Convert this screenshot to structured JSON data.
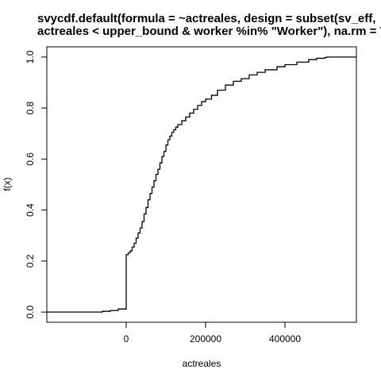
{
  "chart_data": {
    "type": "line",
    "title_lines": [
      "svycdf.default(formula = ~actreales, design = subset(sv_eff,",
      "actreales < upper_bound & worker %in% \"Worker\"), na.rm = T)"
    ],
    "xlabel": "actreales",
    "ylabel": "f(x)",
    "xlim": [
      -200000,
      580000
    ],
    "ylim": [
      -0.04,
      1.04
    ],
    "x_ticks": [
      0,
      200000,
      400000
    ],
    "x_tick_labels": [
      "0",
      "200000",
      "400000"
    ],
    "y_ticks": [
      0.0,
      0.2,
      0.4,
      0.6,
      0.8,
      1.0
    ],
    "y_tick_labels": [
      "0.0",
      "0.2",
      "0.4",
      "0.6",
      "0.8",
      "1.0"
    ],
    "grid": false,
    "series": [
      {
        "color": "#000000",
        "points": [
          [
            -200000,
            0.0
          ],
          [
            -70000,
            0.0
          ],
          [
            -60000,
            0.003
          ],
          [
            -40000,
            0.006
          ],
          [
            -20000,
            0.012
          ],
          [
            0,
            0.02
          ],
          [
            0,
            0.225
          ],
          [
            5000,
            0.232
          ],
          [
            10000,
            0.24
          ],
          [
            15000,
            0.255
          ],
          [
            20000,
            0.27
          ],
          [
            25000,
            0.29
          ],
          [
            30000,
            0.31
          ],
          [
            35000,
            0.33
          ],
          [
            40000,
            0.355
          ],
          [
            45000,
            0.385
          ],
          [
            50000,
            0.41
          ],
          [
            55000,
            0.44
          ],
          [
            60000,
            0.465
          ],
          [
            65000,
            0.49
          ],
          [
            70000,
            0.515
          ],
          [
            75000,
            0.54
          ],
          [
            80000,
            0.56
          ],
          [
            85000,
            0.585
          ],
          [
            90000,
            0.61
          ],
          [
            95000,
            0.63
          ],
          [
            100000,
            0.655
          ],
          [
            105000,
            0.675
          ],
          [
            110000,
            0.69
          ],
          [
            115000,
            0.705
          ],
          [
            120000,
            0.715
          ],
          [
            125000,
            0.725
          ],
          [
            130000,
            0.735
          ],
          [
            140000,
            0.75
          ],
          [
            150000,
            0.765
          ],
          [
            160000,
            0.78
          ],
          [
            170000,
            0.795
          ],
          [
            180000,
            0.81
          ],
          [
            190000,
            0.825
          ],
          [
            200000,
            0.835
          ],
          [
            215000,
            0.85
          ],
          [
            230000,
            0.87
          ],
          [
            250000,
            0.89
          ],
          [
            270000,
            0.905
          ],
          [
            290000,
            0.915
          ],
          [
            310000,
            0.93
          ],
          [
            330000,
            0.94
          ],
          [
            350000,
            0.95
          ],
          [
            380000,
            0.962
          ],
          [
            400000,
            0.97
          ],
          [
            430000,
            0.98
          ],
          [
            460000,
            0.99
          ],
          [
            480000,
            0.995
          ],
          [
            500000,
            0.998
          ],
          [
            505000,
            1.0
          ],
          [
            580000,
            1.0
          ]
        ]
      }
    ]
  }
}
